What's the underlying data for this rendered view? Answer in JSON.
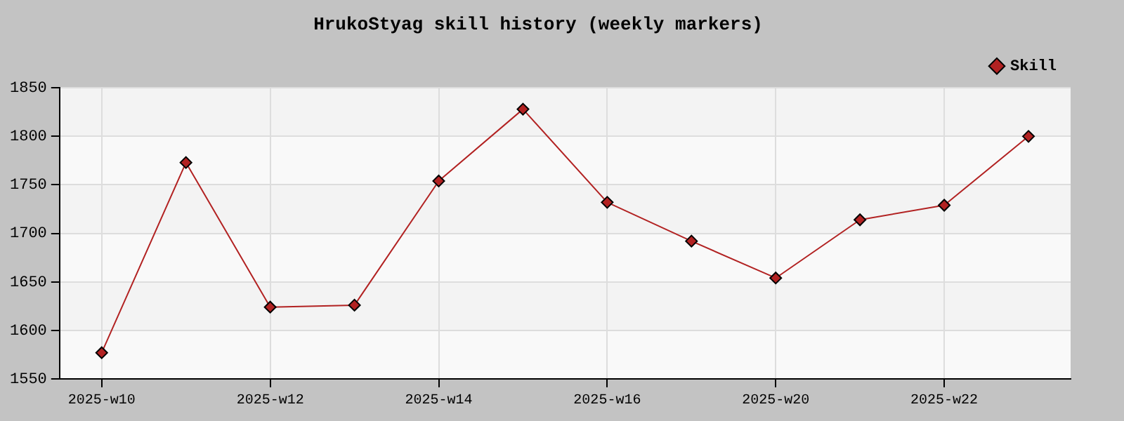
{
  "chart_data": {
    "type": "line",
    "title": "HrukoStyag skill history (weekly markers)",
    "categories": [
      "2025-w10",
      null,
      "2025-w12",
      null,
      "2025-w14",
      null,
      "2025-w16",
      null,
      "2025-w20",
      null,
      "2025-w22",
      null
    ],
    "series": [
      {
        "name": "Skill",
        "color": "#b22222",
        "values": [
          1577,
          1773,
          1624,
          1626,
          1754,
          1828,
          1732,
          1692,
          1654,
          1714,
          1729,
          1800
        ]
      }
    ],
    "ylim": [
      1550,
      1850
    ],
    "yticks": [
      1550,
      1600,
      1650,
      1700,
      1750,
      1800,
      1850
    ],
    "grid": true,
    "legend": "top right",
    "marker": "diamond",
    "line_style": "solid"
  }
}
